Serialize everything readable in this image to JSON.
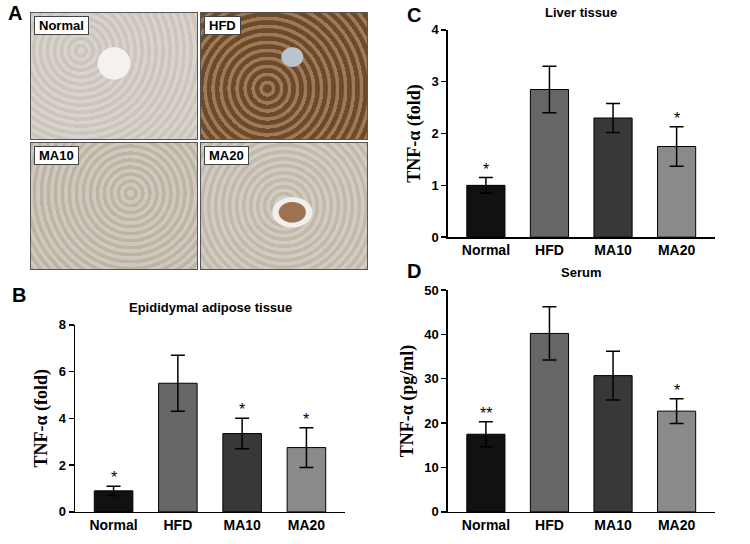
{
  "micrograph_panel": {
    "panel_label": "A",
    "images": [
      "Normal",
      "HFD",
      "MA10",
      "MA20"
    ]
  },
  "chart_data": [
    {
      "type": "bar",
      "panel_label": "B",
      "title": "Epididymal adipose tissue",
      "y_label": "TNF-α (fold)",
      "categories": [
        "Normal",
        "HFD",
        "MA10",
        "MA20"
      ],
      "values": [
        0.9,
        5.5,
        3.35,
        2.75
      ],
      "error": [
        0.2,
        1.2,
        0.65,
        0.85
      ],
      "significance": [
        "*",
        null,
        "*",
        "*"
      ],
      "colors": [
        "#111111",
        "#666666",
        "#383838",
        "#8a8a8a"
      ],
      "ylim": [
        0,
        8
      ],
      "yticks": [
        0,
        2,
        4,
        6,
        8
      ],
      "grid": false
    },
    {
      "type": "bar",
      "panel_label": "C",
      "title": "Liver tissue",
      "y_label": "TNF-α (fold)",
      "categories": [
        "Normal",
        "HFD",
        "MA10",
        "MA20"
      ],
      "values": [
        1.0,
        2.85,
        2.3,
        1.75
      ],
      "error": [
        0.15,
        0.45,
        0.28,
        0.38
      ],
      "significance": [
        "*",
        null,
        null,
        "*"
      ],
      "colors": [
        "#111111",
        "#666666",
        "#383838",
        "#8a8a8a"
      ],
      "ylim": [
        0,
        4
      ],
      "yticks": [
        0,
        1,
        2,
        3,
        4
      ],
      "grid": false
    },
    {
      "type": "bar",
      "panel_label": "D",
      "title": "Serum",
      "y_label": "TNF-α (pg/ml)",
      "categories": [
        "Normal",
        "HFD",
        "MA10",
        "MA20"
      ],
      "values": [
        17.5,
        40.2,
        30.7,
        22.7
      ],
      "error": [
        2.8,
        6.0,
        5.5,
        2.8
      ],
      "significance": [
        "**",
        null,
        null,
        "*"
      ],
      "colors": [
        "#111111",
        "#666666",
        "#383838",
        "#8a8a8a"
      ],
      "ylim": [
        0,
        50
      ],
      "yticks": [
        0,
        10,
        20,
        30,
        40,
        50
      ],
      "grid": false
    }
  ]
}
